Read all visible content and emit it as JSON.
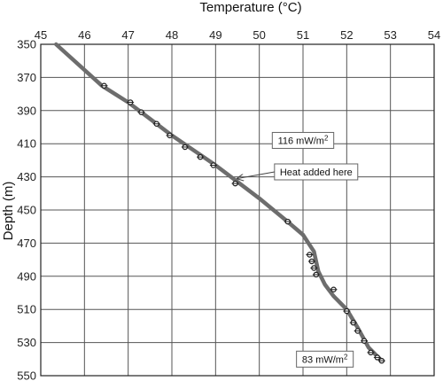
{
  "chart_data": {
    "type": "line",
    "title": "",
    "xlabel": "Temperature (°C)",
    "ylabel": "Depth (m)",
    "xlim": [
      45,
      54
    ],
    "ylim": [
      350,
      550
    ],
    "y_inverted": true,
    "x_axis_position": "top",
    "x_ticks": [
      "45",
      "46",
      "47",
      "48",
      "49",
      "50",
      "51",
      "52",
      "53",
      "54"
    ],
    "y_ticks": [
      "350",
      "370",
      "390",
      "410",
      "430",
      "450",
      "470",
      "490",
      "510",
      "530",
      "550"
    ],
    "grid": true,
    "series": [
      {
        "style": "thick-line",
        "x": [
          45.35,
          46.4,
          47.0,
          47.6,
          48.0,
          48.5,
          49.0,
          49.5,
          50.0,
          50.6,
          51.0,
          51.25,
          51.35,
          51.5,
          51.7,
          52.0,
          52.25,
          52.5,
          52.8
        ],
        "y": [
          350,
          375,
          385,
          397,
          405,
          414,
          423,
          433,
          443,
          456,
          465,
          475,
          487,
          495,
          502,
          510,
          521,
          533,
          541
        ]
      },
      {
        "style": "markers",
        "x": [
          46.45,
          47.05,
          47.3,
          47.65,
          47.95,
          48.3,
          48.65,
          48.95,
          49.45,
          50.65,
          51.15,
          51.2,
          51.25,
          51.3,
          51.7,
          52.0,
          52.15,
          52.25,
          52.4,
          52.55,
          52.7,
          52.8
        ],
        "y": [
          375,
          385,
          391,
          398,
          405,
          412,
          418,
          423,
          434,
          457,
          477,
          481,
          485,
          489,
          498,
          511,
          518,
          523,
          529,
          536,
          539,
          541
        ]
      }
    ],
    "annotations": [
      {
        "text": "116 mW/m",
        "superscript": "2",
        "x": 51.0,
        "y": 408
      },
      {
        "text": "Heat added here",
        "x": 51.3,
        "y": 427,
        "arrow_to_x": 49.5,
        "arrow_to_y": 431
      },
      {
        "text": "83 mW/m",
        "superscript": "2",
        "x": 51.5,
        "y": 540
      }
    ],
    "colors": {
      "line": "#6d6d6d",
      "marker": "#222222",
      "grid": "#555555"
    }
  }
}
